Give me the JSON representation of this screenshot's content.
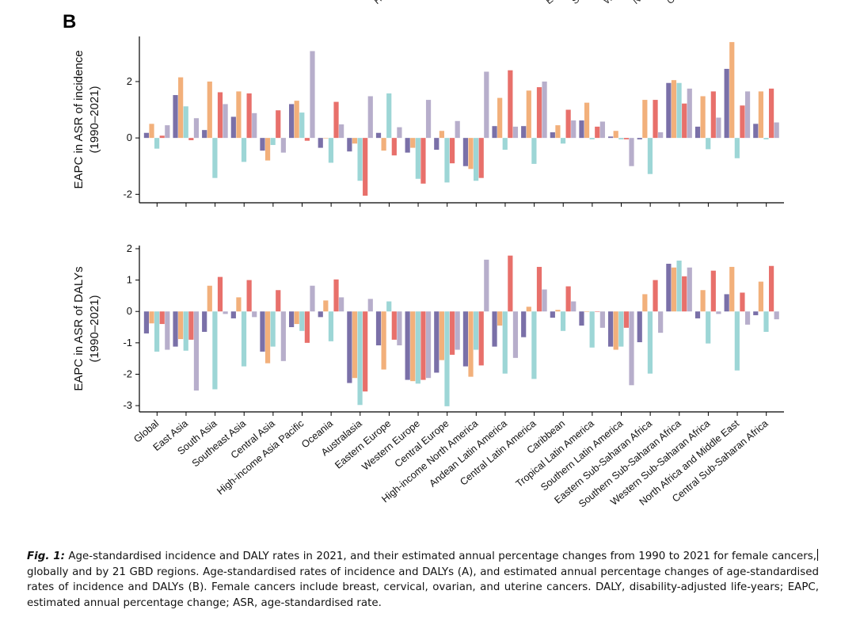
{
  "panel_label": "B",
  "top_cutoff_labels": [
    "High",
    "Eas",
    "Sou",
    "Wes",
    "Nor",
    "Ce"
  ],
  "colors": {
    "incidence_1": "#7a70a8",
    "incidence_2": "#f2b07b",
    "incidence_3": "#9dd6d6",
    "incidence_4": "#e8706b",
    "incidence_5": "#b7aecb"
  },
  "caption": {
    "label": "Fig. 1:",
    "text_before_cursor": " Age-standardised incidence and DALY rates in 2021, and their estimated annual percentage changes from 1990 to 2021 for female cancers,",
    "text_after_cursor": " globally and by 21 GBD regions. Age-standardised rates of incidence and DALYs (A), and estimated annual percentage changes of age-standardised rates of incidence and DALYs (B). Female cancers include breast, cervical, ovarian, and uterine cancers. DALY, disability-adjusted life-years; EAPC, estimated annual percentage change; ASR, age-standardised rate."
  },
  "chart_data": [
    {
      "type": "bar",
      "ylabel_line1": "EAPC in ASR of incidence",
      "ylabel_line2": "(1990–2021)",
      "ylim": [
        -2.3,
        3.6
      ],
      "yticks": [
        -2,
        0,
        2
      ],
      "categories": [
        "Global",
        "East Asia",
        "South Asia",
        "Southeast Asia",
        "Central Asia",
        "High-income Asia Pacific",
        "Oceania",
        "Australasia",
        "Eastern Europe",
        "Western Europe",
        "Central Europe",
        "High-income North America",
        "Andean Latin America",
        "Central Latin America",
        "Caribbean",
        "Tropical Latin America",
        "Southern Latin America",
        "Eastern Sub-Saharan Africa",
        "Southern Sub-Saharan Africa",
        "Western Sub-Saharan Africa",
        "North Africa and Middle East",
        "Central Sub-Saharan Africa"
      ],
      "series": [
        {
          "values": [
            0.18,
            1.52,
            0.28,
            0.75,
            -0.45,
            1.2,
            -0.35,
            -0.48,
            0.18,
            -0.52,
            -0.42,
            -1.0,
            0.42,
            0.42,
            0.2,
            0.62,
            0.05,
            -0.05,
            1.95,
            0.4,
            2.45,
            0.5
          ]
        },
        {
          "values": [
            0.5,
            2.15,
            2.0,
            1.65,
            -0.8,
            1.32,
            0.0,
            -0.2,
            -0.45,
            -0.35,
            0.25,
            -1.1,
            1.42,
            1.68,
            0.45,
            1.25,
            0.25,
            1.35,
            2.05,
            1.48,
            3.4,
            1.65
          ]
        },
        {
          "values": [
            -0.38,
            1.12,
            -1.42,
            -0.85,
            -0.25,
            0.9,
            -0.88,
            -1.52,
            1.58,
            -1.45,
            -1.58,
            -1.52,
            -0.42,
            -0.92,
            -0.2,
            -0.05,
            -0.05,
            -1.28,
            1.95,
            -0.4,
            -0.72,
            -0.05
          ]
        },
        {
          "values": [
            0.08,
            -0.08,
            1.62,
            1.58,
            0.98,
            -0.1,
            1.28,
            -2.05,
            -0.62,
            -1.62,
            -0.9,
            -1.42,
            2.4,
            1.8,
            1.0,
            0.4,
            -0.05,
            1.35,
            1.22,
            1.65,
            1.15,
            1.75
          ]
        },
        {
          "values": [
            0.45,
            0.7,
            1.2,
            0.88,
            -0.52,
            3.08,
            0.48,
            1.48,
            0.38,
            1.35,
            0.6,
            2.35,
            0.4,
            2.0,
            0.62,
            0.58,
            -1.0,
            0.2,
            1.75,
            0.72,
            1.65,
            0.55
          ]
        }
      ]
    },
    {
      "type": "bar",
      "ylabel_line1": "EAPC in ASR of DALYs",
      "ylabel_line2": "(1990–2021)",
      "ylim": [
        -3.2,
        2.1
      ],
      "yticks": [
        -3,
        -2,
        -1,
        0,
        1,
        2
      ],
      "categories": [
        "Global",
        "East Asia",
        "South Asia",
        "Southeast Asia",
        "Central Asia",
        "High-income Asia Pacific",
        "Oceania",
        "Australasia",
        "Eastern Europe",
        "Western Europe",
        "Central Europe",
        "High-income North America",
        "Andean Latin America",
        "Central Latin America",
        "Caribbean",
        "Tropical Latin America",
        "Southern Latin America",
        "Eastern Sub-Saharan Africa",
        "Southern Sub-Saharan Africa",
        "Western Sub-Saharan Africa",
        "North Africa and Middle East",
        "Central Sub-Saharan Africa"
      ],
      "series": [
        {
          "values": [
            -0.7,
            -1.12,
            -0.65,
            -0.22,
            -1.28,
            -0.5,
            -0.18,
            -2.28,
            -1.08,
            -2.18,
            -1.95,
            -1.75,
            -1.12,
            -0.82,
            -0.2,
            -0.45,
            -1.12,
            -0.98,
            1.52,
            -0.22,
            0.55,
            -0.12
          ]
        },
        {
          "values": [
            -0.38,
            -0.88,
            0.82,
            0.45,
            -1.65,
            -0.4,
            0.35,
            -2.12,
            -1.85,
            -2.22,
            -1.55,
            -2.08,
            -0.45,
            0.15,
            0.05,
            0.0,
            -1.22,
            0.55,
            1.4,
            0.68,
            1.42,
            0.95
          ]
        },
        {
          "values": [
            -1.28,
            -1.25,
            -2.48,
            -1.75,
            -1.12,
            -0.62,
            -0.95,
            -2.98,
            0.32,
            -2.3,
            -3.02,
            -1.22,
            -1.98,
            -2.15,
            -0.62,
            -1.15,
            -1.12,
            -1.98,
            1.62,
            -1.02,
            -1.88,
            -0.65
          ]
        },
        {
          "values": [
            -0.4,
            -0.9,
            1.1,
            1.0,
            0.68,
            -1.0,
            1.02,
            -2.55,
            -0.9,
            -2.18,
            -1.38,
            -1.72,
            1.78,
            1.42,
            0.8,
            0.0,
            -0.52,
            1.0,
            1.12,
            1.3,
            0.6,
            1.45
          ]
        },
        {
          "values": [
            -1.22,
            -2.52,
            -0.08,
            -0.18,
            -1.58,
            0.82,
            0.45,
            0.4,
            -1.08,
            -2.12,
            -1.22,
            1.65,
            -1.48,
            0.7,
            0.32,
            -0.52,
            -2.35,
            -0.68,
            1.4,
            -0.08,
            -0.42,
            -0.25
          ]
        }
      ]
    }
  ]
}
